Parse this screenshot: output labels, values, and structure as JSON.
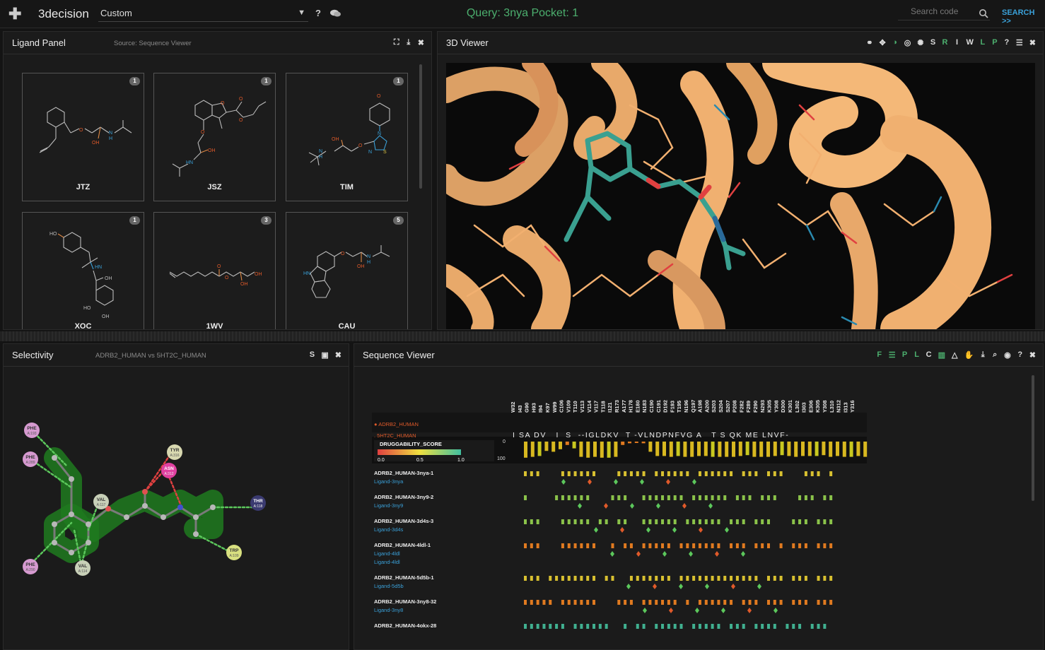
{
  "topbar": {
    "brand": "3decision",
    "dropdown_value": "Custom",
    "help": "?",
    "query": "Query: 3nya Pocket: 1",
    "search_placeholder": "Search code",
    "search_button": "SEARCH >>"
  },
  "ligand_panel": {
    "title": "Ligand Panel",
    "source": "Source: Sequence Viewer",
    "ligands": [
      {
        "name": "JTZ",
        "count": "1"
      },
      {
        "name": "JSZ",
        "count": "1"
      },
      {
        "name": "TIM",
        "count": "1"
      },
      {
        "name": "XOC",
        "count": "1"
      },
      {
        "name": "1WV",
        "count": "3"
      },
      {
        "name": "CAU",
        "count": "5"
      }
    ],
    "atom_labels": {
      "oh": "OH",
      "ho": "HO",
      "h": "H",
      "n": "N",
      "s": "S",
      "o": "O",
      "hn": "HN"
    }
  },
  "viewer": {
    "title": "3D Viewer",
    "tools": [
      "S",
      "R",
      "I",
      "W",
      "L",
      "P",
      "?"
    ]
  },
  "selectivity": {
    "title": "Selectivity",
    "subtitle": "ADRB2_HUMAN vs 5HT2C_HUMAN",
    "tool_s": "S",
    "residues": [
      {
        "name": "PHE",
        "id": "A:193",
        "color": "#d69ad0"
      },
      {
        "name": "PHE",
        "id": "A:289",
        "color": "#d69ad0"
      },
      {
        "name": "TYR",
        "id": "A:316",
        "color": "#d8d8b0"
      },
      {
        "name": "ASN",
        "id": "A:312",
        "color": "#e040a0"
      },
      {
        "name": "VAL",
        "id": "A:117",
        "color": "#c8d0b8"
      },
      {
        "name": "THR",
        "id": "A:118",
        "color": "#3a3a70"
      },
      {
        "name": "TRP",
        "id": "A:109",
        "color": "#d8e080"
      },
      {
        "name": "PHE",
        "id": "A:290",
        "color": "#d69ad0"
      },
      {
        "name": "VAL",
        "id": "A:114",
        "color": "#c8d0b8"
      }
    ]
  },
  "sequence_viewer": {
    "title": "Sequence Viewer",
    "tools": [
      "F",
      "P",
      "L",
      "C"
    ],
    "residue_labels": [
      "W32",
      "I43",
      "G90",
      "H93",
      "I94",
      "K97",
      "W99",
      "C106",
      "V109",
      "T110",
      "V113",
      "V114",
      "V117",
      "T118",
      "I121",
      "R173",
      "A177",
      "H178",
      "E180",
      "N183",
      "C190",
      "C191",
      "D192",
      "F193",
      "T195",
      "N196",
      "Q197",
      "A198",
      "A200",
      "S203",
      "S204",
      "S207",
      "P208",
      "F282",
      "F289",
      "F290",
      "N293",
      "K305",
      "Y308",
      "D300",
      "K301",
      "L302",
      "I303",
      "E306",
      "K305",
      "Y308",
      "L310",
      "N312",
      "I313",
      "Y316"
    ],
    "seq_row1_label": "ADRB2_HUMAN",
    "seq_row2_label": "5HT2C_HUMAN",
    "seq_row2": "I SA DV   I  S  --IGLDKV  T -VLNDPNFVG A   T S QK ME LNVF-",
    "druggability_label": "DRUGGABILITY_SCORE",
    "scale_min": "0.0",
    "scale_mid": "0.5",
    "scale_max": "1.0",
    "axis_top": "0",
    "axis_bottom": "100",
    "entries": [
      {
        "id": "ADRB2_HUMAN-3nya-1",
        "ligands": [
          "Ligand-3nya"
        ]
      },
      {
        "id": "ADRB2_HUMAN-3ny9-2",
        "ligands": [
          "Ligand-3ny9"
        ]
      },
      {
        "id": "ADRB2_HUMAN-3d4s-3",
        "ligands": [
          "Ligand-3d4s"
        ]
      },
      {
        "id": "ADRB2_HUMAN-4ldl-1",
        "ligands": [
          "Ligand-4ldl",
          "Ligand-4ldl"
        ]
      },
      {
        "id": "ADRB2_HUMAN-5d5b-1",
        "ligands": [
          "Ligand-5d5b"
        ]
      },
      {
        "id": "ADRB2_HUMAN-3ny8-32",
        "ligands": [
          "Ligand-3ny8"
        ]
      },
      {
        "id": "ADRB2_HUMAN-4okx-28",
        "ligands": []
      }
    ]
  }
}
